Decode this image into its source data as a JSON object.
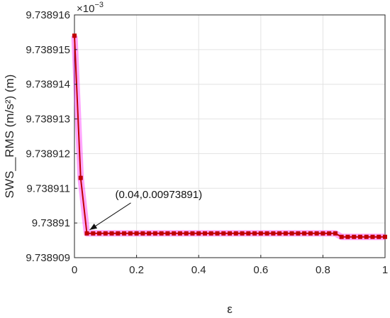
{
  "chart_data": {
    "type": "line",
    "title": "",
    "xlabel": "ε",
    "ylabel": "SWS__RMS (m/s²) (m)",
    "y_exponent_label": "×10",
    "y_exponent_power": "−3",
    "xlim": [
      0,
      1
    ],
    "ylim": [
      9.738909,
      9.738916
    ],
    "x_ticks": [
      0,
      0.2,
      0.4,
      0.6,
      0.8,
      1
    ],
    "x_tick_labels": [
      "0",
      "0.2",
      "0.4",
      "0.6",
      "0.8",
      "1"
    ],
    "y_ticks": [
      9.738909,
      9.73891,
      9.738911,
      9.738912,
      9.738913,
      9.738914,
      9.738915,
      9.738916
    ],
    "y_tick_labels": [
      "9.738909",
      "9.73891",
      "9.738911",
      "9.738912",
      "9.738913",
      "9.738914",
      "9.738915",
      "9.738916"
    ],
    "grid": true,
    "series": [
      {
        "color": "#c00000",
        "halo_color": "#ff00ff",
        "marker": "square",
        "x": [
          0,
          0.02,
          0.04,
          0.06,
          0.08,
          0.1,
          0.12,
          0.14,
          0.16,
          0.18,
          0.2,
          0.22,
          0.24,
          0.26,
          0.28,
          0.3,
          0.32,
          0.34,
          0.36,
          0.38,
          0.4,
          0.42,
          0.44,
          0.46,
          0.48,
          0.5,
          0.52,
          0.54,
          0.56,
          0.58,
          0.6,
          0.62,
          0.64,
          0.66,
          0.68,
          0.7,
          0.72,
          0.74,
          0.76,
          0.78,
          0.8,
          0.82,
          0.84,
          0.86,
          0.88,
          0.9,
          0.92,
          0.94,
          0.96,
          0.98,
          1.0
        ],
        "y": [
          9.7389154,
          9.7389113,
          9.7389097,
          9.7389097,
          9.7389097,
          9.7389097,
          9.7389097,
          9.7389097,
          9.7389097,
          9.7389097,
          9.7389097,
          9.7389097,
          9.7389097,
          9.7389097,
          9.7389097,
          9.7389097,
          9.7389097,
          9.7389097,
          9.7389097,
          9.7389097,
          9.7389097,
          9.7389097,
          9.7389097,
          9.7389097,
          9.7389097,
          9.7389097,
          9.7389097,
          9.7389097,
          9.7389097,
          9.7389097,
          9.7389097,
          9.7389097,
          9.7389097,
          9.7389097,
          9.7389097,
          9.7389097,
          9.7389097,
          9.7389097,
          9.7389097,
          9.7389097,
          9.7389097,
          9.7389097,
          9.7389097,
          9.7389096,
          9.7389096,
          9.7389096,
          9.7389096,
          9.7389096,
          9.7389096,
          9.7389096,
          9.7389096
        ]
      }
    ],
    "annotation": {
      "text": "(0.04,0.00973891)",
      "x": 0.04,
      "y": 9.7389097
    }
  }
}
